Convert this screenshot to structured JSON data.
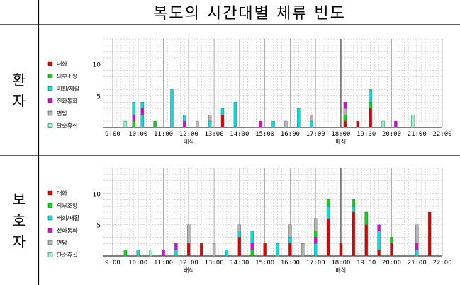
{
  "title": "복도의 시간대별 체류 빈도",
  "colors": {
    "대화": "#e00000",
    "의부조망": "#00e000",
    "배회/재활": "#00e0e0",
    "전화통화": "#e000e0",
    "면담": "#b4b4b4",
    "단순휴식": "#80ffc8"
  },
  "chart_data": [
    {
      "type": "bar",
      "row_label": "환자",
      "legend": [
        "대화",
        "의부조망",
        "배회/재활",
        "전화통화",
        "면담",
        "단순휴식"
      ],
      "yticks": [
        5,
        10
      ],
      "ylim": [
        0,
        14
      ],
      "x_tick_labels": [
        "9:00",
        "10:00",
        "11:00",
        "12:00",
        "13:00",
        "14:00",
        "15:00",
        "16:00",
        "17:00",
        "18:00",
        "19:00",
        "20:00",
        "21:00",
        "22:00"
      ],
      "x_sublabels": [
        {
          "at": "12:00",
          "text": "배식"
        },
        {
          "at": "18:00",
          "text": "배식"
        }
      ],
      "bars": [
        {
          "x": "9:30",
          "segments": [
            {
              "category": "단순휴식",
              "value": 1
            }
          ]
        },
        {
          "x": "9:50",
          "segments": [
            {
              "category": "의부조망",
              "value": 1
            },
            {
              "category": "전화통화",
              "value": 1
            },
            {
              "category": "배회/재활",
              "value": 2
            }
          ]
        },
        {
          "x": "10:10",
          "segments": [
            {
              "category": "배회/재활",
              "value": 2
            },
            {
              "category": "전화통화",
              "value": 1
            },
            {
              "category": "배회/재활",
              "value": 1
            }
          ]
        },
        {
          "x": "10:40",
          "segments": [
            {
              "category": "의부조망",
              "value": 1
            }
          ]
        },
        {
          "x": "11:20",
          "segments": [
            {
              "category": "배회/재활",
              "value": 6
            }
          ]
        },
        {
          "x": "11:50",
          "segments": [
            {
              "category": "전화통화",
              "value": 1
            },
            {
              "category": "배회/재활",
              "value": 1
            }
          ]
        },
        {
          "x": "12:20",
          "segments": [
            {
              "category": "면담",
              "value": 1
            }
          ]
        },
        {
          "x": "12:50",
          "segments": [
            {
              "category": "배회/재활",
              "value": 1
            },
            {
              "category": "면담",
              "value": 1
            }
          ]
        },
        {
          "x": "13:20",
          "segments": [
            {
              "category": "대화",
              "value": 2
            },
            {
              "category": "배회/재활",
              "value": 1
            }
          ]
        },
        {
          "x": "13:50",
          "segments": [
            {
              "category": "배회/재활",
              "value": 4
            }
          ]
        },
        {
          "x": "14:50",
          "segments": [
            {
              "category": "전화통화",
              "value": 1
            }
          ]
        },
        {
          "x": "15:20",
          "segments": [
            {
              "category": "배회/재활",
              "value": 1
            }
          ]
        },
        {
          "x": "15:50",
          "segments": [
            {
              "category": "면담",
              "value": 1
            }
          ]
        },
        {
          "x": "16:20",
          "segments": [
            {
              "category": "배회/재활",
              "value": 3
            }
          ]
        },
        {
          "x": "16:50",
          "segments": [
            {
              "category": "배회/재활",
              "value": 1
            },
            {
              "category": "면담",
              "value": 1
            }
          ]
        },
        {
          "x": "18:10",
          "segments": [
            {
              "category": "대화",
              "value": 1
            },
            {
              "category": "의부조망",
              "value": 1
            },
            {
              "category": "면담",
              "value": 1
            },
            {
              "category": "전화통화",
              "value": 1
            }
          ]
        },
        {
          "x": "18:40",
          "segments": [
            {
              "category": "대화",
              "value": 1
            }
          ]
        },
        {
          "x": "19:10",
          "segments": [
            {
              "category": "대화",
              "value": 3
            },
            {
              "category": "의부조망",
              "value": 1
            },
            {
              "category": "배회/재활",
              "value": 2
            }
          ]
        },
        {
          "x": "19:40",
          "segments": [
            {
              "category": "단순휴식",
              "value": 1
            }
          ]
        },
        {
          "x": "20:10",
          "segments": [
            {
              "category": "전화통화",
              "value": 1
            }
          ]
        },
        {
          "x": "20:50",
          "segments": [
            {
              "category": "단순휴식",
              "value": 2
            }
          ]
        }
      ]
    },
    {
      "type": "bar",
      "row_label": "보호자",
      "legend": [
        "대화",
        "의부조망",
        "배회/재활",
        "전화통화",
        "면담",
        "단순휴식"
      ],
      "yticks": [
        5,
        10
      ],
      "ylim": [
        0,
        14
      ],
      "x_tick_labels": [
        "9:00",
        "10:00",
        "11:00",
        "12:00",
        "13:00",
        "14:00",
        "15:00",
        "16:00",
        "17:00",
        "18:00",
        "19:00",
        "20:00",
        "21:00",
        "22:00"
      ],
      "x_sublabels": [
        {
          "at": "12:00",
          "text": "배식"
        },
        {
          "at": "18:00",
          "text": "배식"
        }
      ],
      "bars": [
        {
          "x": "9:30",
          "segments": [
            {
              "category": "의부조망",
              "value": 1
            }
          ]
        },
        {
          "x": "10:00",
          "segments": [
            {
              "category": "배회/재활",
              "value": 1
            }
          ]
        },
        {
          "x": "10:30",
          "segments": [
            {
              "category": "단순휴식",
              "value": 1
            }
          ]
        },
        {
          "x": "11:00",
          "segments": [
            {
              "category": "전화통화",
              "value": 1
            }
          ]
        },
        {
          "x": "11:30",
          "segments": [
            {
              "category": "배회/재활",
              "value": 1
            },
            {
              "category": "전화통화",
              "value": 1
            }
          ]
        },
        {
          "x": "12:00",
          "segments": [
            {
              "category": "대화",
              "value": 2
            },
            {
              "category": "면담",
              "value": 3
            }
          ]
        },
        {
          "x": "12:30",
          "segments": [
            {
              "category": "대화",
              "value": 2
            }
          ]
        },
        {
          "x": "13:00",
          "segments": [
            {
              "category": "면담",
              "value": 2
            }
          ]
        },
        {
          "x": "13:30",
          "segments": [
            {
              "category": "배회/재활",
              "value": 1
            }
          ]
        },
        {
          "x": "14:00",
          "segments": [
            {
              "category": "대화",
              "value": 3
            },
            {
              "category": "배회/재활",
              "value": 1
            },
            {
              "category": "면담",
              "value": 1
            }
          ]
        },
        {
          "x": "14:30",
          "segments": [
            {
              "category": "의부조망",
              "value": 1
            },
            {
              "category": "전화통화",
              "value": 1
            },
            {
              "category": "배회/재활",
              "value": 2
            }
          ]
        },
        {
          "x": "15:00",
          "segments": [
            {
              "category": "대화",
              "value": 2
            }
          ]
        },
        {
          "x": "15:30",
          "segments": [
            {
              "category": "배회/재활",
              "value": 2
            }
          ]
        },
        {
          "x": "16:00",
          "segments": [
            {
              "category": "대화",
              "value": 2
            },
            {
              "category": "배회/재활",
              "value": 1
            },
            {
              "category": "면담",
              "value": 2
            }
          ]
        },
        {
          "x": "16:30",
          "segments": [
            {
              "category": "면담",
              "value": 2
            }
          ]
        },
        {
          "x": "17:00",
          "segments": [
            {
              "category": "배회/재활",
              "value": 2
            },
            {
              "category": "전화통화",
              "value": 1
            },
            {
              "category": "의부조망",
              "value": 1
            },
            {
              "category": "면담",
              "value": 2
            }
          ]
        },
        {
          "x": "17:30",
          "segments": [
            {
              "category": "대화",
              "value": 6
            },
            {
              "category": "배회/재활",
              "value": 2
            },
            {
              "category": "의부조망",
              "value": 1
            }
          ]
        },
        {
          "x": "18:00",
          "segments": [
            {
              "category": "대화",
              "value": 2
            }
          ]
        },
        {
          "x": "18:30",
          "segments": [
            {
              "category": "대화",
              "value": 7
            },
            {
              "category": "배회/재활",
              "value": 1
            },
            {
              "category": "의부조망",
              "value": 1
            }
          ]
        },
        {
          "x": "19:00",
          "segments": [
            {
              "category": "대화",
              "value": 5
            },
            {
              "category": "의부조망",
              "value": 2
            }
          ]
        },
        {
          "x": "19:30",
          "segments": [
            {
              "category": "대화",
              "value": 1
            },
            {
              "category": "배회/재활",
              "value": 3
            },
            {
              "category": "전화통화",
              "value": 1
            }
          ]
        },
        {
          "x": "20:00",
          "segments": [
            {
              "category": "대화",
              "value": 2
            },
            {
              "category": "의부조망",
              "value": 1
            }
          ]
        },
        {
          "x": "21:00",
          "segments": [
            {
              "category": "배회/재활",
              "value": 1
            },
            {
              "category": "전화통화",
              "value": 1
            },
            {
              "category": "면담",
              "value": 3
            }
          ]
        },
        {
          "x": "21:30",
          "segments": [
            {
              "category": "대화",
              "value": 7
            }
          ]
        }
      ]
    }
  ]
}
